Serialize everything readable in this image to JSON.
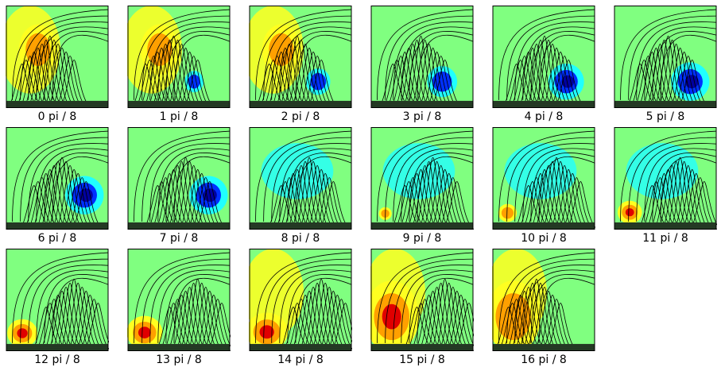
{
  "colors": {
    "background": "#80ff80",
    "yellow": "#ffff20",
    "orange": "#ffa000",
    "red": "#e00000",
    "cyan": "#20ffff",
    "blue": "#0030ff",
    "darkblue": "#0000a0",
    "contour": "#000000",
    "frame": "#000000"
  },
  "panels": [
    {
      "label": "0 pi / 8",
      "phase": 0
    },
    {
      "label": "1 pi / 8",
      "phase": 1
    },
    {
      "label": "2 pi / 8",
      "phase": 2
    },
    {
      "label": "3 pi / 8",
      "phase": 3
    },
    {
      "label": "4 pi / 8",
      "phase": 4
    },
    {
      "label": "5 pi / 8",
      "phase": 5
    },
    {
      "label": "6 pi / 8",
      "phase": 6
    },
    {
      "label": "7 pi / 8",
      "phase": 7
    },
    {
      "label": "8 pi / 8",
      "phase": 8
    },
    {
      "label": "9 pi / 8",
      "phase": 9
    },
    {
      "label": "10 pi / 8",
      "phase": 10
    },
    {
      "label": "11 pi / 8",
      "phase": 11
    },
    {
      "label": "12 pi / 8",
      "phase": 12
    },
    {
      "label": "13 pi / 8",
      "phase": 13
    },
    {
      "label": "14 pi / 8",
      "phase": 14
    },
    {
      "label": "15 pi / 8",
      "phase": 15
    },
    {
      "label": "16 pi / 8",
      "phase": 16
    }
  ]
}
